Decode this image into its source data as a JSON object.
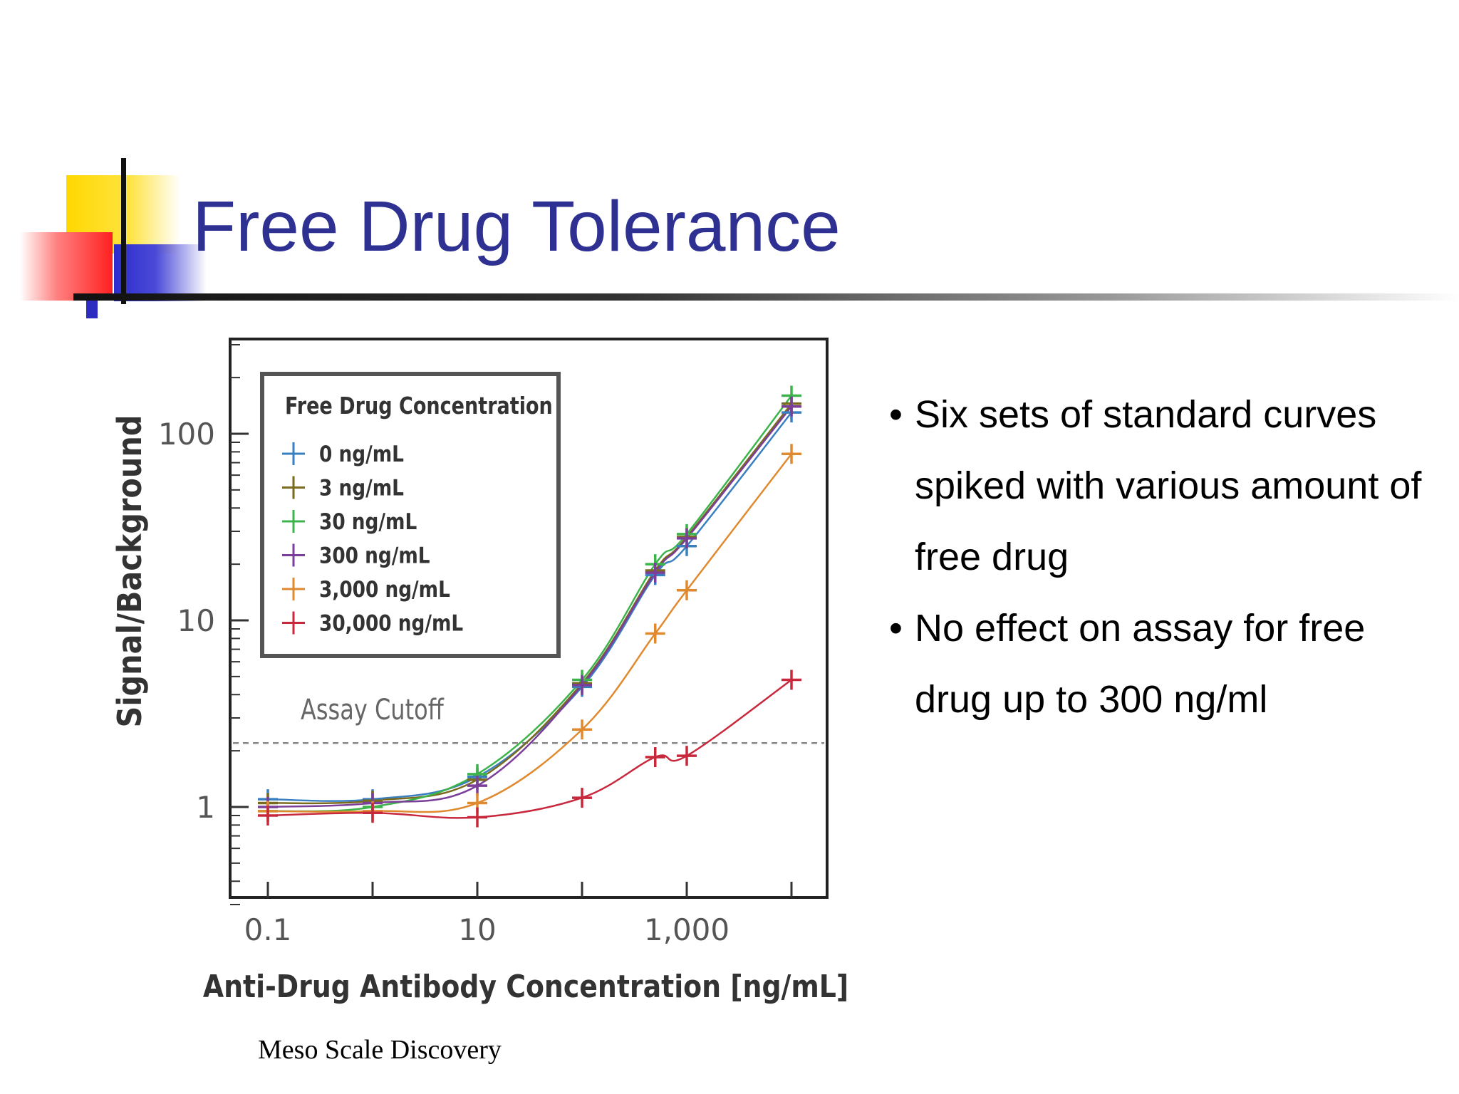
{
  "slide": {
    "title": "Free Drug Tolerance",
    "bullets": [
      "Six sets of standard curves spiked with various amount of free drug",
      "No effect on assay for free drug up to 300 ng/ml"
    ],
    "source": "Meso Scale Discovery",
    "decoration_colors": {
      "yellow": "#ffd800",
      "red": "#ff2020",
      "blue": "#2c2ccc",
      "title": "#2e3192"
    }
  },
  "chart_data": {
    "type": "scatter",
    "xlabel": "Anti-Drug Antibody Concentration [ng/mL]",
    "ylabel": "Signal/Background",
    "x_scale": "log",
    "y_scale": "log",
    "xlim": [
      0.05,
      20000
    ],
    "ylim": [
      0.3,
      300
    ],
    "x_ticks": [
      0.1,
      10,
      1000
    ],
    "x_tick_labels": [
      "0.1",
      "10",
      "1,000"
    ],
    "y_ticks": [
      1,
      10,
      100
    ],
    "y_tick_labels": [
      "1",
      "10",
      "100"
    ],
    "grid": false,
    "legend": {
      "title": "Free Drug Concentration",
      "placement": "top-left"
    },
    "annotation": {
      "text": "Assay Cutoff",
      "y": 2.2,
      "style": "dashed"
    },
    "x": [
      0.1,
      1,
      10,
      100,
      500,
      1000,
      10000
    ],
    "series": [
      {
        "name": "0 ng/mL",
        "color": "#3a7fc0",
        "values": [
          1.1,
          1.1,
          1.45,
          4.4,
          17.5,
          25,
          130
        ]
      },
      {
        "name": "3 ng/mL",
        "color": "#7a6a1e",
        "values": [
          1.05,
          1.08,
          1.4,
          4.6,
          18.5,
          28,
          145
        ]
      },
      {
        "name": "30 ng/mL",
        "color": "#3cb44b",
        "values": [
          0.95,
          1.0,
          1.5,
          4.8,
          20,
          29,
          160
        ]
      },
      {
        "name": "300 ng/mL",
        "color": "#7b3f9a",
        "values": [
          1.0,
          1.05,
          1.3,
          4.5,
          18,
          27.5,
          140
        ]
      },
      {
        "name": "3,000 ng/mL",
        "color": "#e08a30",
        "values": [
          0.95,
          0.95,
          1.05,
          2.6,
          8.5,
          14.5,
          78
        ]
      },
      {
        "name": "30,000 ng/mL",
        "color": "#c8283c",
        "values": [
          0.9,
          0.93,
          0.88,
          1.12,
          1.85,
          1.88,
          4.8
        ]
      }
    ]
  }
}
